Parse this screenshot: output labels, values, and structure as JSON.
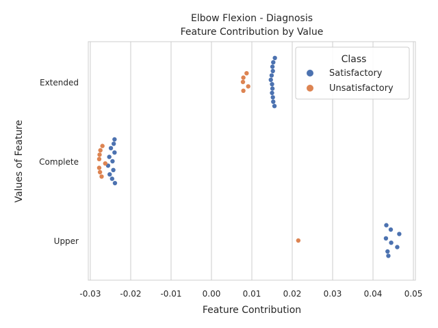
{
  "chart_data": {
    "type": "scatter",
    "title": "Elbow Flexion - Diagnosis",
    "subtitle": "Feature Contribution by Value",
    "xlabel": "Feature Contribution",
    "ylabel": "Values of Feature",
    "xlim": [
      -0.0305,
      0.0505
    ],
    "xticks": [
      "-0.03",
      "-0.02",
      "-0.01",
      "0.00",
      "0.01",
      "0.02",
      "0.03",
      "0.04",
      "0.05"
    ],
    "xtick_values": [
      -0.03,
      -0.02,
      -0.01,
      0.0,
      0.01,
      0.02,
      0.03,
      0.04,
      0.05
    ],
    "categories": [
      "Extended",
      "Complete",
      "Upper"
    ],
    "grid": "vertical",
    "legend": {
      "title": "Class",
      "placement": "top-right",
      "entries": [
        {
          "label": "Satisfactory",
          "color": "#4c72b0"
        },
        {
          "label": "Unsatisfactory",
          "color": "#dd8452"
        }
      ]
    },
    "series": [
      {
        "name": "Satisfactory",
        "color": "#4c72b0",
        "points": {
          "Extended": [
            0.0157,
            0.0153,
            0.0151,
            0.0152,
            0.0149,
            0.0147,
            0.015,
            0.0151,
            0.015,
            0.0152,
            0.0153,
            0.0156
          ],
          "Complete": [
            -0.024,
            -0.0242,
            -0.0249,
            -0.024,
            -0.0253,
            -0.0245,
            -0.0256,
            -0.0243,
            -0.0252,
            -0.0246,
            -0.0239
          ],
          "Upper": [
            0.0433,
            0.0444,
            0.0465,
            0.0432,
            0.0445,
            0.046,
            0.0436,
            0.0438
          ]
        }
      },
      {
        "name": "Unsatisfactory",
        "color": "#dd8452",
        "points": {
          "Extended": [
            0.0087,
            0.0079,
            0.0078,
            0.0091,
            0.0079
          ],
          "Complete": [
            -0.027,
            -0.0275,
            -0.0277,
            -0.0278,
            -0.0263,
            -0.0278,
            -0.0276,
            -0.0272
          ],
          "Upper": [
            0.0215
          ]
        }
      }
    ]
  }
}
